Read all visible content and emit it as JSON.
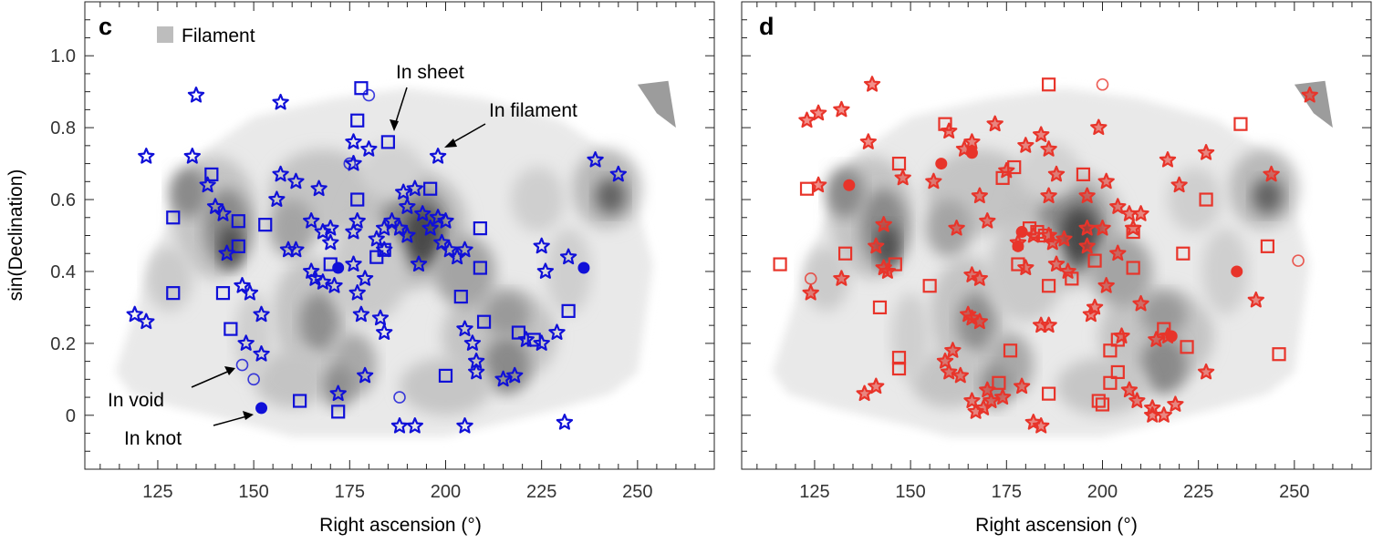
{
  "panels": [
    {
      "label": "c",
      "marker_color": "#1010d8",
      "legend": {
        "swatch_label": "Filament",
        "swatch_color": "#bdbdbd"
      },
      "annotations": [
        "In sheet",
        "In filament",
        "In void",
        "In knot"
      ]
    },
    {
      "label": "d",
      "marker_color": "#e8342a",
      "legend": null,
      "annotations": []
    }
  ],
  "chart_data": [
    {
      "type": "scatter",
      "panel": "c",
      "xlabel": "Right ascension (°)",
      "ylabel": "sin(Declination)",
      "xlim": [
        106,
        270
      ],
      "ylim": [
        -0.15,
        1.15
      ],
      "xticks": [
        125,
        150,
        175,
        200,
        225,
        250
      ],
      "yticks": [
        0,
        0.2,
        0.4,
        0.6,
        0.8,
        1.0
      ],
      "ytick_labels": [
        "0",
        "0.2",
        "0.4",
        "0.6",
        "0.8",
        "1.0"
      ],
      "background": "filament density contour map (gray shades)",
      "series": [
        {
          "name": "In filament",
          "marker": "star",
          "points": [
            [
              135,
              0.89
            ],
            [
              157,
              0.87
            ],
            [
              122,
              0.72
            ],
            [
              134,
              0.72
            ],
            [
              138,
              0.64
            ],
            [
              140,
              0.58
            ],
            [
              142,
              0.56
            ],
            [
              157,
              0.67
            ],
            [
              156,
              0.6
            ],
            [
              161,
              0.65
            ],
            [
              167,
              0.63
            ],
            [
              165,
              0.54
            ],
            [
              168,
              0.51
            ],
            [
              170,
              0.52
            ],
            [
              170,
              0.48
            ],
            [
              176,
              0.76
            ],
            [
              180,
              0.74
            ],
            [
              176,
              0.7
            ],
            [
              198,
              0.72
            ],
            [
              239,
              0.71
            ],
            [
              245,
              0.67
            ],
            [
              177,
              0.54
            ],
            [
              184,
              0.52
            ],
            [
              186,
              0.54
            ],
            [
              188,
              0.52
            ],
            [
              190,
              0.5
            ],
            [
              189,
              0.62
            ],
            [
              192,
              0.63
            ],
            [
              190,
              0.58
            ],
            [
              194,
              0.56
            ],
            [
              196,
              0.52
            ],
            [
              198,
              0.55
            ],
            [
              200,
              0.54
            ],
            [
              199,
              0.48
            ],
            [
              201,
              0.46
            ],
            [
              203,
              0.44
            ],
            [
              205,
              0.46
            ],
            [
              182,
              0.49
            ],
            [
              176,
              0.42
            ],
            [
              179,
              0.38
            ],
            [
              171,
              0.36
            ],
            [
              168,
              0.37
            ],
            [
              165,
              0.4
            ],
            [
              166,
              0.38
            ],
            [
              161,
              0.46
            ],
            [
              159,
              0.46
            ],
            [
              143,
              0.45
            ],
            [
              147,
              0.36
            ],
            [
              149,
              0.34
            ],
            [
              152,
              0.28
            ],
            [
              148,
              0.2
            ],
            [
              152,
              0.17
            ],
            [
              119,
              0.28
            ],
            [
              122,
              0.26
            ],
            [
              177,
              0.34
            ],
            [
              178,
              0.28
            ],
            [
              183,
              0.27
            ],
            [
              184,
              0.23
            ],
            [
              176,
              0.51
            ],
            [
              184,
              0.46
            ],
            [
              193,
              0.42
            ],
            [
              205,
              0.24
            ],
            [
              207,
              0.2
            ],
            [
              208,
              0.15
            ],
            [
              208,
              0.12
            ],
            [
              215,
              0.1
            ],
            [
              218,
              0.11
            ],
            [
              221,
              0.21
            ],
            [
              225,
              0.2
            ],
            [
              229,
              0.23
            ],
            [
              225,
              0.47
            ],
            [
              232,
              0.44
            ],
            [
              226,
              0.4
            ],
            [
              179,
              0.11
            ],
            [
              172,
              0.06
            ],
            [
              188,
              -0.03
            ],
            [
              192,
              -0.03
            ],
            [
              205,
              -0.03
            ],
            [
              231,
              -0.02
            ]
          ]
        },
        {
          "name": "In sheet",
          "marker": "square",
          "points": [
            [
              178,
              0.91
            ],
            [
              177,
              0.82
            ],
            [
              185,
              0.76
            ],
            [
              139,
              0.67
            ],
            [
              177,
              0.6
            ],
            [
              129,
              0.55
            ],
            [
              146,
              0.54
            ],
            [
              153,
              0.53
            ],
            [
              146,
              0.47
            ],
            [
              184,
              0.46
            ],
            [
              170,
              0.42
            ],
            [
              182,
              0.44
            ],
            [
              196,
              0.63
            ],
            [
              209,
              0.52
            ],
            [
              209,
              0.41
            ],
            [
              204,
              0.33
            ],
            [
              210,
              0.26
            ],
            [
              219,
              0.23
            ],
            [
              223,
              0.21
            ],
            [
              232,
              0.29
            ],
            [
              142,
              0.34
            ],
            [
              129,
              0.34
            ],
            [
              144,
              0.24
            ],
            [
              200,
              0.11
            ],
            [
              162,
              0.04
            ],
            [
              172,
              0.01
            ]
          ]
        },
        {
          "name": "In void",
          "marker": "open-circle",
          "points": [
            [
              180,
              0.89
            ],
            [
              175,
              0.7
            ],
            [
              147,
              0.14
            ],
            [
              150,
              0.1
            ],
            [
              188,
              0.05
            ]
          ]
        },
        {
          "name": "In knot",
          "marker": "filled-circle",
          "points": [
            [
              172,
              0.41
            ],
            [
              236,
              0.41
            ],
            [
              152,
              0.02
            ]
          ]
        }
      ]
    },
    {
      "type": "scatter",
      "panel": "d",
      "xlabel": "Right ascension (°)",
      "ylabel": "",
      "xlim": [
        106,
        270
      ],
      "ylim": [
        -0.15,
        1.15
      ],
      "xticks": [
        125,
        150,
        175,
        200,
        225,
        250
      ],
      "yticks": [
        0,
        0.2,
        0.4,
        0.6,
        0.8,
        1.0
      ],
      "background": "filament density contour map (gray shades)",
      "series": [
        {
          "name": "In filament",
          "marker": "star",
          "points": [
            [
              140,
              0.92
            ],
            [
              254,
              0.89
            ],
            [
              123,
              0.82
            ],
            [
              126,
              0.84
            ],
            [
              132,
              0.85
            ],
            [
              160,
              0.79
            ],
            [
              164,
              0.74
            ],
            [
              166,
              0.76
            ],
            [
              172,
              0.81
            ],
            [
              180,
              0.75
            ],
            [
              184,
              0.78
            ],
            [
              186,
              0.74
            ],
            [
              199,
              0.8
            ],
            [
              139,
              0.76
            ],
            [
              148,
              0.66
            ],
            [
              156,
              0.65
            ],
            [
              168,
              0.61
            ],
            [
              126,
              0.64
            ],
            [
              175,
              0.68
            ],
            [
              188,
              0.67
            ],
            [
              186,
              0.61
            ],
            [
              196,
              0.61
            ],
            [
              204,
              0.58
            ],
            [
              207,
              0.56
            ],
            [
              201,
              0.65
            ],
            [
              217,
              0.71
            ],
            [
              220,
              0.64
            ],
            [
              227,
              0.73
            ],
            [
              244,
              0.67
            ],
            [
              170,
              0.54
            ],
            [
              178,
              0.48
            ],
            [
              182,
              0.5
            ],
            [
              186,
              0.5
            ],
            [
              190,
              0.49
            ],
            [
              196,
              0.47
            ],
            [
              196,
              0.52
            ],
            [
              200,
              0.52
            ],
            [
              208,
              0.52
            ],
            [
              210,
              0.56
            ],
            [
              143,
              0.53
            ],
            [
              141,
              0.47
            ],
            [
              143,
              0.41
            ],
            [
              144,
              0.4
            ],
            [
              124,
              0.34
            ],
            [
              132,
              0.38
            ],
            [
              162,
              0.52
            ],
            [
              180,
              0.41
            ],
            [
              187,
              0.48
            ],
            [
              188,
              0.42
            ],
            [
              191,
              0.4
            ],
            [
              204,
              0.45
            ],
            [
              210,
              0.31
            ],
            [
              201,
              0.36
            ],
            [
              197,
              0.28
            ],
            [
              198,
              0.3
            ],
            [
              166,
              0.39
            ],
            [
              168,
              0.38
            ],
            [
              165,
              0.28
            ],
            [
              166,
              0.27
            ],
            [
              168,
              0.26
            ],
            [
              184,
              0.25
            ],
            [
              186,
              0.25
            ],
            [
              217,
              0.22
            ],
            [
              214,
              0.21
            ],
            [
              240,
              0.32
            ],
            [
              161,
              0.18
            ],
            [
              159,
              0.15
            ],
            [
              163,
              0.11
            ],
            [
              160,
              0.12
            ],
            [
              170,
              0.07
            ],
            [
              171,
              0.04
            ],
            [
              174,
              0.05
            ],
            [
              169,
              0.02
            ],
            [
              167,
              0.01
            ],
            [
              179,
              0.08
            ],
            [
              182,
              -0.02
            ],
            [
              184,
              -0.03
            ],
            [
              207,
              0.07
            ],
            [
              209,
              0.04
            ],
            [
              213,
              0.02
            ],
            [
              213,
              0.0
            ],
            [
              216,
              0.0
            ],
            [
              219,
              0.03
            ],
            [
              227,
              0.12
            ],
            [
              138,
              0.06
            ],
            [
              141,
              0.08
            ],
            [
              166,
              0.04
            ],
            [
              205,
              0.22
            ]
          ]
        },
        {
          "name": "In sheet",
          "marker": "square",
          "points": [
            [
              186,
              0.92
            ],
            [
              236,
              0.81
            ],
            [
              159,
              0.81
            ],
            [
              147,
              0.7
            ],
            [
              174,
              0.66
            ],
            [
              177,
              0.69
            ],
            [
              123,
              0.63
            ],
            [
              133,
              0.45
            ],
            [
              116,
              0.42
            ],
            [
              146,
              0.42
            ],
            [
              155,
              0.36
            ],
            [
              181,
              0.52
            ],
            [
              183,
              0.51
            ],
            [
              185,
              0.5
            ],
            [
              178,
              0.42
            ],
            [
              186,
              0.36
            ],
            [
              192,
              0.38
            ],
            [
              198,
              0.43
            ],
            [
              195,
              0.67
            ],
            [
              208,
              0.51
            ],
            [
              208,
              0.41
            ],
            [
              221,
              0.45
            ],
            [
              227,
              0.6
            ],
            [
              243,
              0.47
            ],
            [
              142,
              0.3
            ],
            [
              147,
              0.16
            ],
            [
              147,
              0.13
            ],
            [
              176,
              0.18
            ],
            [
              173,
              0.09
            ],
            [
              186,
              0.06
            ],
            [
              199,
              0.04
            ],
            [
              200,
              0.03
            ],
            [
              202,
              0.09
            ],
            [
              202,
              0.18
            ],
            [
              204,
              0.12
            ],
            [
              204,
              0.21
            ],
            [
              216,
              0.24
            ],
            [
              222,
              0.19
            ],
            [
              246,
              0.17
            ]
          ]
        },
        {
          "name": "In void",
          "marker": "open-circle",
          "points": [
            [
              200,
              0.92
            ],
            [
              124,
              0.38
            ],
            [
              251,
              0.43
            ]
          ]
        },
        {
          "name": "In knot",
          "marker": "filled-circle",
          "points": [
            [
              134,
              0.64
            ],
            [
              158,
              0.7
            ],
            [
              166,
              0.73
            ],
            [
              179,
              0.51
            ],
            [
              178,
              0.47
            ],
            [
              235,
              0.4
            ],
            [
              218,
              0.22
            ]
          ]
        }
      ]
    }
  ]
}
